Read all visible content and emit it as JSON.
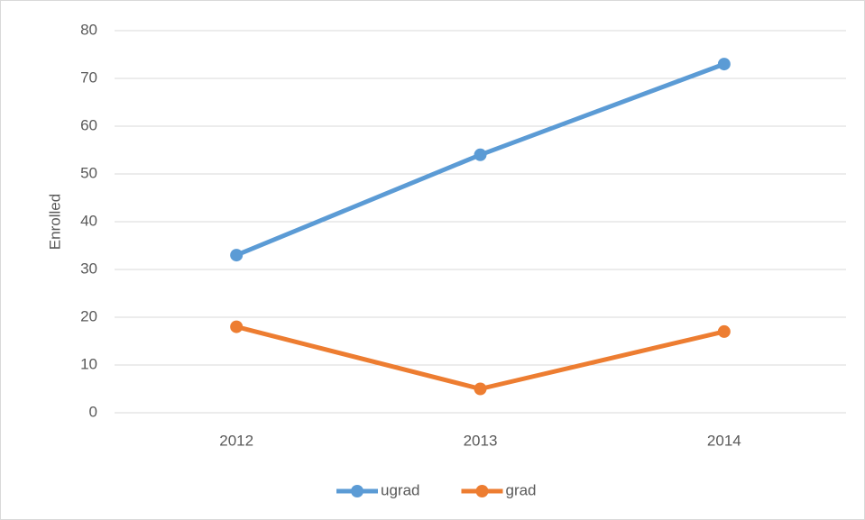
{
  "chart_data": {
    "type": "line",
    "y_label": "Enrolled",
    "categories": [
      "2012",
      "2013",
      "2014"
    ],
    "series": [
      {
        "name": "ugrad",
        "color": "#5b9bd5",
        "values": [
          33,
          54,
          73
        ]
      },
      {
        "name": "grad",
        "color": "#ed7d31",
        "values": [
          18,
          5,
          17
        ]
      }
    ],
    "ylim": [
      0,
      80
    ],
    "yticks": [
      0,
      10,
      20,
      30,
      40,
      50,
      60,
      70,
      80
    ],
    "grid": true,
    "legend": "bottom"
  }
}
